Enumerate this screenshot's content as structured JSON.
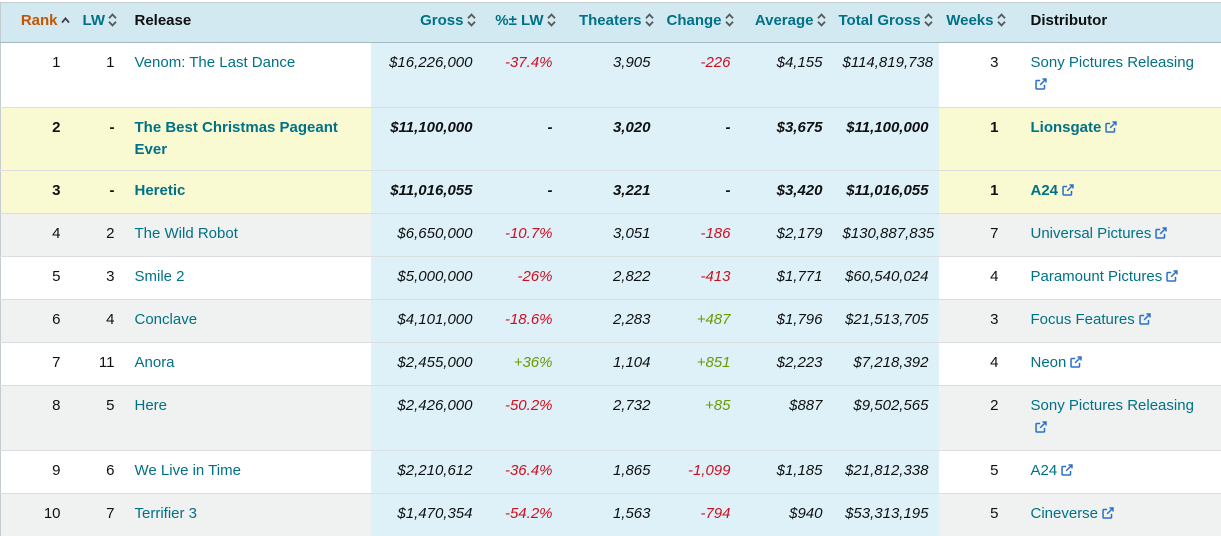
{
  "table": {
    "columns": [
      {
        "key": "rank",
        "label": "Rank",
        "sort": "asc",
        "align": "right",
        "style": "sorted",
        "zone": "plainbg"
      },
      {
        "key": "lw",
        "label": "LW",
        "sort": "both",
        "align": "right",
        "style": "teal",
        "zone": "plainbg"
      },
      {
        "key": "release",
        "label": "Release",
        "sort": "none",
        "align": "left",
        "style": "plain",
        "zone": "plainbg"
      },
      {
        "key": "gross",
        "label": "Gross",
        "sort": "both",
        "align": "right",
        "style": "teal",
        "zone": "blue"
      },
      {
        "key": "pct_lw",
        "label": "%± LW",
        "sort": "both",
        "align": "right",
        "style": "teal",
        "zone": "blue"
      },
      {
        "key": "theaters",
        "label": "Theaters",
        "sort": "both",
        "align": "right",
        "style": "teal",
        "zone": "blue"
      },
      {
        "key": "change",
        "label": "Change",
        "sort": "both",
        "align": "right",
        "style": "teal",
        "zone": "blue"
      },
      {
        "key": "average",
        "label": "Average",
        "sort": "both",
        "align": "right",
        "style": "teal",
        "zone": "blue"
      },
      {
        "key": "total_gross",
        "label": "Total Gross",
        "sort": "both",
        "align": "right",
        "style": "teal",
        "zone": "blue"
      },
      {
        "key": "weeks",
        "label": "Weeks",
        "sort": "both",
        "align": "right",
        "style": "teal",
        "zone": "plainbg"
      },
      {
        "key": "distributor",
        "label": "Distributor",
        "sort": "none",
        "align": "left",
        "style": "plain",
        "zone": "plainbg"
      }
    ],
    "rows": [
      {
        "rank": "1",
        "lw": "1",
        "release": "Venom: The Last Dance",
        "gross": "$16,226,000",
        "pct_lw": "-37.4%",
        "theaters": "3,905",
        "change": "-226",
        "average": "$4,155",
        "total_gross": "$114,819,738",
        "weeks": "3",
        "distributor": "Sony Pictures Releasing",
        "shade": "white",
        "highlight": false
      },
      {
        "rank": "2",
        "lw": "-",
        "release": "The Best Christmas Pageant Ever",
        "gross": "$11,100,000",
        "pct_lw": "-",
        "theaters": "3,020",
        "change": "-",
        "average": "$3,675",
        "total_gross": "$11,100,000",
        "weeks": "1",
        "distributor": "Lionsgate",
        "shade": "yellow",
        "highlight": true
      },
      {
        "rank": "3",
        "lw": "-",
        "release": "Heretic",
        "gross": "$11,016,055",
        "pct_lw": "-",
        "theaters": "3,221",
        "change": "-",
        "average": "$3,420",
        "total_gross": "$11,016,055",
        "weeks": "1",
        "distributor": "A24",
        "shade": "yellow",
        "highlight": true
      },
      {
        "rank": "4",
        "lw": "2",
        "release": "The Wild Robot",
        "gross": "$6,650,000",
        "pct_lw": "-10.7%",
        "theaters": "3,051",
        "change": "-186",
        "average": "$2,179",
        "total_gross": "$130,887,835",
        "weeks": "7",
        "distributor": "Universal Pictures",
        "shade": "gray",
        "highlight": false
      },
      {
        "rank": "5",
        "lw": "3",
        "release": "Smile 2",
        "gross": "$5,000,000",
        "pct_lw": "-26%",
        "theaters": "2,822",
        "change": "-413",
        "average": "$1,771",
        "total_gross": "$60,540,024",
        "weeks": "4",
        "distributor": "Paramount Pictures",
        "shade": "white",
        "highlight": false
      },
      {
        "rank": "6",
        "lw": "4",
        "release": "Conclave",
        "gross": "$4,101,000",
        "pct_lw": "-18.6%",
        "theaters": "2,283",
        "change": "+487",
        "average": "$1,796",
        "total_gross": "$21,513,705",
        "weeks": "3",
        "distributor": "Focus Features",
        "shade": "gray",
        "highlight": false
      },
      {
        "rank": "7",
        "lw": "11",
        "release": "Anora",
        "gross": "$2,455,000",
        "pct_lw": "+36%",
        "theaters": "1,104",
        "change": "+851",
        "average": "$2,223",
        "total_gross": "$7,218,392",
        "weeks": "4",
        "distributor": "Neon",
        "shade": "white",
        "highlight": false
      },
      {
        "rank": "8",
        "lw": "5",
        "release": "Here",
        "gross": "$2,426,000",
        "pct_lw": "-50.2%",
        "theaters": "2,732",
        "change": "+85",
        "average": "$887",
        "total_gross": "$9,502,565",
        "weeks": "2",
        "distributor": "Sony Pictures Releasing",
        "shade": "gray",
        "highlight": false
      },
      {
        "rank": "9",
        "lw": "6",
        "release": "We Live in Time",
        "gross": "$2,210,612",
        "pct_lw": "-36.4%",
        "theaters": "1,865",
        "change": "-1,099",
        "average": "$1,185",
        "total_gross": "$21,812,338",
        "weeks": "5",
        "distributor": "A24",
        "shade": "white",
        "highlight": false
      },
      {
        "rank": "10",
        "lw": "7",
        "release": "Terrifier 3",
        "gross": "$1,470,354",
        "pct_lw": "-54.2%",
        "theaters": "1,563",
        "change": "-794",
        "average": "$940",
        "total_gross": "$53,313,195",
        "weeks": "5",
        "distributor": "Cineverse",
        "shade": "gray",
        "highlight": false
      }
    ]
  },
  "icons": {
    "sort_both": "sort-both-icon",
    "sort_asc": "sort-asc-icon",
    "external_link": "external-link-icon"
  },
  "colors": {
    "header_bg": "#d3e9f2",
    "blue_zone_bg": "#def1f8",
    "highlight_yellow": "#fafad2",
    "row_gray": "#f0f1f1",
    "link_teal": "#017185",
    "sorted_orange": "#c45500",
    "negative_red": "#cc1021",
    "positive_green": "#6a9a00",
    "external_link_blue": "#2b70c9",
    "sort_icon_gray": "#565959"
  }
}
